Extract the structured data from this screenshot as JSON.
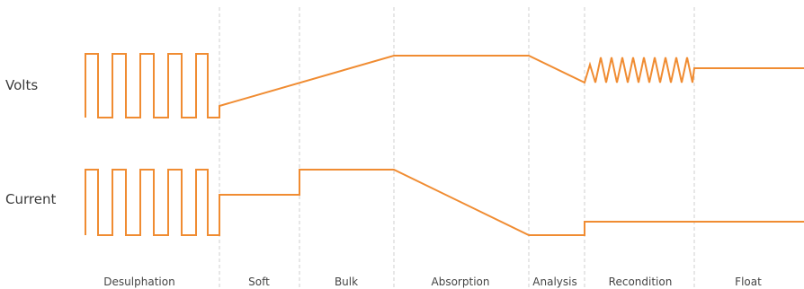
{
  "rows": {
    "volts": "Volts",
    "current": "Current"
  },
  "stages": [
    "Desulphation",
    "Soft",
    "Bulk",
    "Absorption",
    "Analysis",
    "Recondition",
    "Float"
  ],
  "colors": {
    "waveform": "#f08c32",
    "divider": "#cfcfcf",
    "text": "#3a3a3a"
  }
}
